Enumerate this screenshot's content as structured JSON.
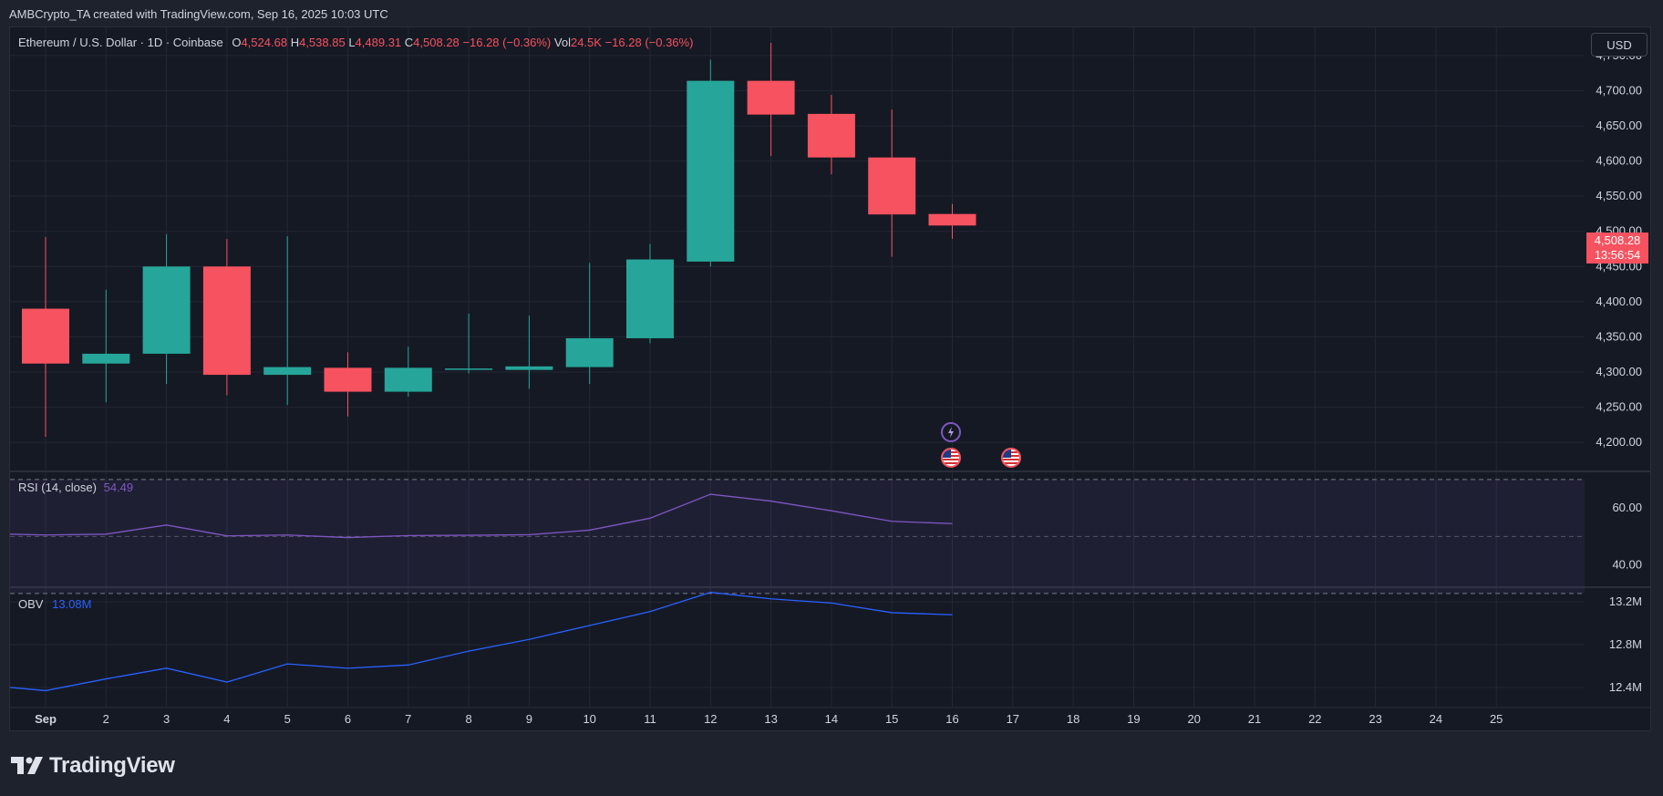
{
  "header": {
    "credit": "AMBCrypto_TA created with TradingView.com, Sep 16, 2025 10:03 UTC"
  },
  "symbol": {
    "name": "Ethereum / U.S. Dollar · 1D · Coinbase",
    "o_label": "O",
    "o_value": "4,524.68",
    "h_label": "H",
    "h_value": "4,538.85",
    "l_label": "L",
    "l_value": "4,489.31",
    "c_label": "C",
    "c_value": "4,508.28",
    "change": "−16.28 (−0.36%)",
    "vol_label": "Vol",
    "vol_value": "24.5K",
    "vol_change": "−16.28 (−0.36%)"
  },
  "currency_button": "USD",
  "last_price": {
    "price": "4,508.28",
    "countdown": "13:56:54"
  },
  "colors": {
    "up": "#26a69a",
    "down": "#f7525f",
    "rsi": "#7e57c2",
    "obv": "#2962ff",
    "pane_bg": "#151924",
    "grid": "#232733"
  },
  "chart_data": [
    {
      "type": "candlestick",
      "title": "Ethereum / U.S. Dollar · 1D · Coinbase",
      "x_ticks": [
        "Sep",
        "2",
        "3",
        "4",
        "5",
        "6",
        "7",
        "8",
        "9",
        "10",
        "11",
        "12",
        "13",
        "14",
        "15",
        "16",
        "17",
        "18",
        "19",
        "20",
        "21",
        "22",
        "23",
        "24",
        "25"
      ],
      "y_ticks": [
        "4,750.00",
        "4,700.00",
        "4,650.00",
        "4,600.00",
        "4,550.00",
        "4,500.00",
        "4,450.00",
        "4,400.00",
        "4,350.00",
        "4,300.00",
        "4,250.00",
        "4,200.00"
      ],
      "ylim": [
        4160,
        4790
      ],
      "candles": [
        {
          "day": "1",
          "open": 4390,
          "high": 4492,
          "low": 4208,
          "close": 4312
        },
        {
          "day": "2",
          "open": 4312,
          "high": 4417,
          "low": 4257,
          "close": 4326
        },
        {
          "day": "3",
          "open": 4326,
          "high": 4496,
          "low": 4283,
          "close": 4450
        },
        {
          "day": "4",
          "open": 4450,
          "high": 4489,
          "low": 4267,
          "close": 4296
        },
        {
          "day": "5",
          "open": 4296,
          "high": 4493,
          "low": 4253,
          "close": 4307
        },
        {
          "day": "6",
          "open": 4306,
          "high": 4328,
          "low": 4237,
          "close": 4272
        },
        {
          "day": "7",
          "open": 4272,
          "high": 4336,
          "low": 4265,
          "close": 4306
        },
        {
          "day": "8",
          "open": 4303,
          "high": 4383,
          "low": 4298,
          "close": 4305
        },
        {
          "day": "9",
          "open": 4303,
          "high": 4380,
          "low": 4276,
          "close": 4308
        },
        {
          "day": "10",
          "open": 4307,
          "high": 4455,
          "low": 4283,
          "close": 4348
        },
        {
          "day": "11",
          "open": 4348,
          "high": 4482,
          "low": 4341,
          "close": 4460
        },
        {
          "day": "12",
          "open": 4457,
          "high": 4744,
          "low": 4450,
          "close": 4714
        },
        {
          "day": "13",
          "open": 4714,
          "high": 4768,
          "low": 4607,
          "close": 4666
        },
        {
          "day": "14",
          "open": 4667,
          "high": 4694,
          "low": 4581,
          "close": 4605
        },
        {
          "day": "15",
          "open": 4605,
          "high": 4673,
          "low": 4464,
          "close": 4524
        },
        {
          "day": "16",
          "open": 4524.68,
          "high": 4538.85,
          "low": 4489.31,
          "close": 4508.28
        }
      ]
    },
    {
      "type": "line",
      "title": "RSI (14, close)",
      "last_value": "54.49",
      "y_ticks": [
        "60.00",
        "40.00"
      ],
      "ylim": [
        32.5,
        72.5
      ],
      "bands": [
        70,
        50,
        30
      ],
      "x": [
        "1",
        "2",
        "3",
        "4",
        "5",
        "6",
        "7",
        "8",
        "9",
        "10",
        "11",
        "12",
        "13",
        "14",
        "15",
        "16"
      ],
      "values": [
        50.5,
        50.8,
        54,
        50.2,
        50.5,
        49.6,
        50.3,
        50.4,
        50.6,
        52.2,
        56.4,
        64.8,
        62.4,
        59,
        55.3,
        54.49
      ]
    },
    {
      "type": "line",
      "title": "OBV",
      "last_value": "13.08M",
      "y_ticks": [
        "13.2M",
        "12.8M",
        "12.4M"
      ],
      "ylim": [
        12.22,
        13.33
      ],
      "x": [
        "1",
        "2",
        "3",
        "4",
        "5",
        "6",
        "7",
        "8",
        "9",
        "10",
        "11",
        "12",
        "13",
        "14",
        "15",
        "16"
      ],
      "values": [
        12.37,
        12.48,
        12.58,
        12.45,
        12.62,
        12.58,
        12.61,
        12.74,
        12.85,
        12.98,
        13.11,
        13.29,
        13.23,
        13.19,
        13.1,
        13.08
      ]
    }
  ],
  "event_icons": [
    "ethereum-event-icon",
    "us-flag-icon",
    "us-flag-icon"
  ],
  "branding": {
    "logo_text": "TradingView"
  }
}
